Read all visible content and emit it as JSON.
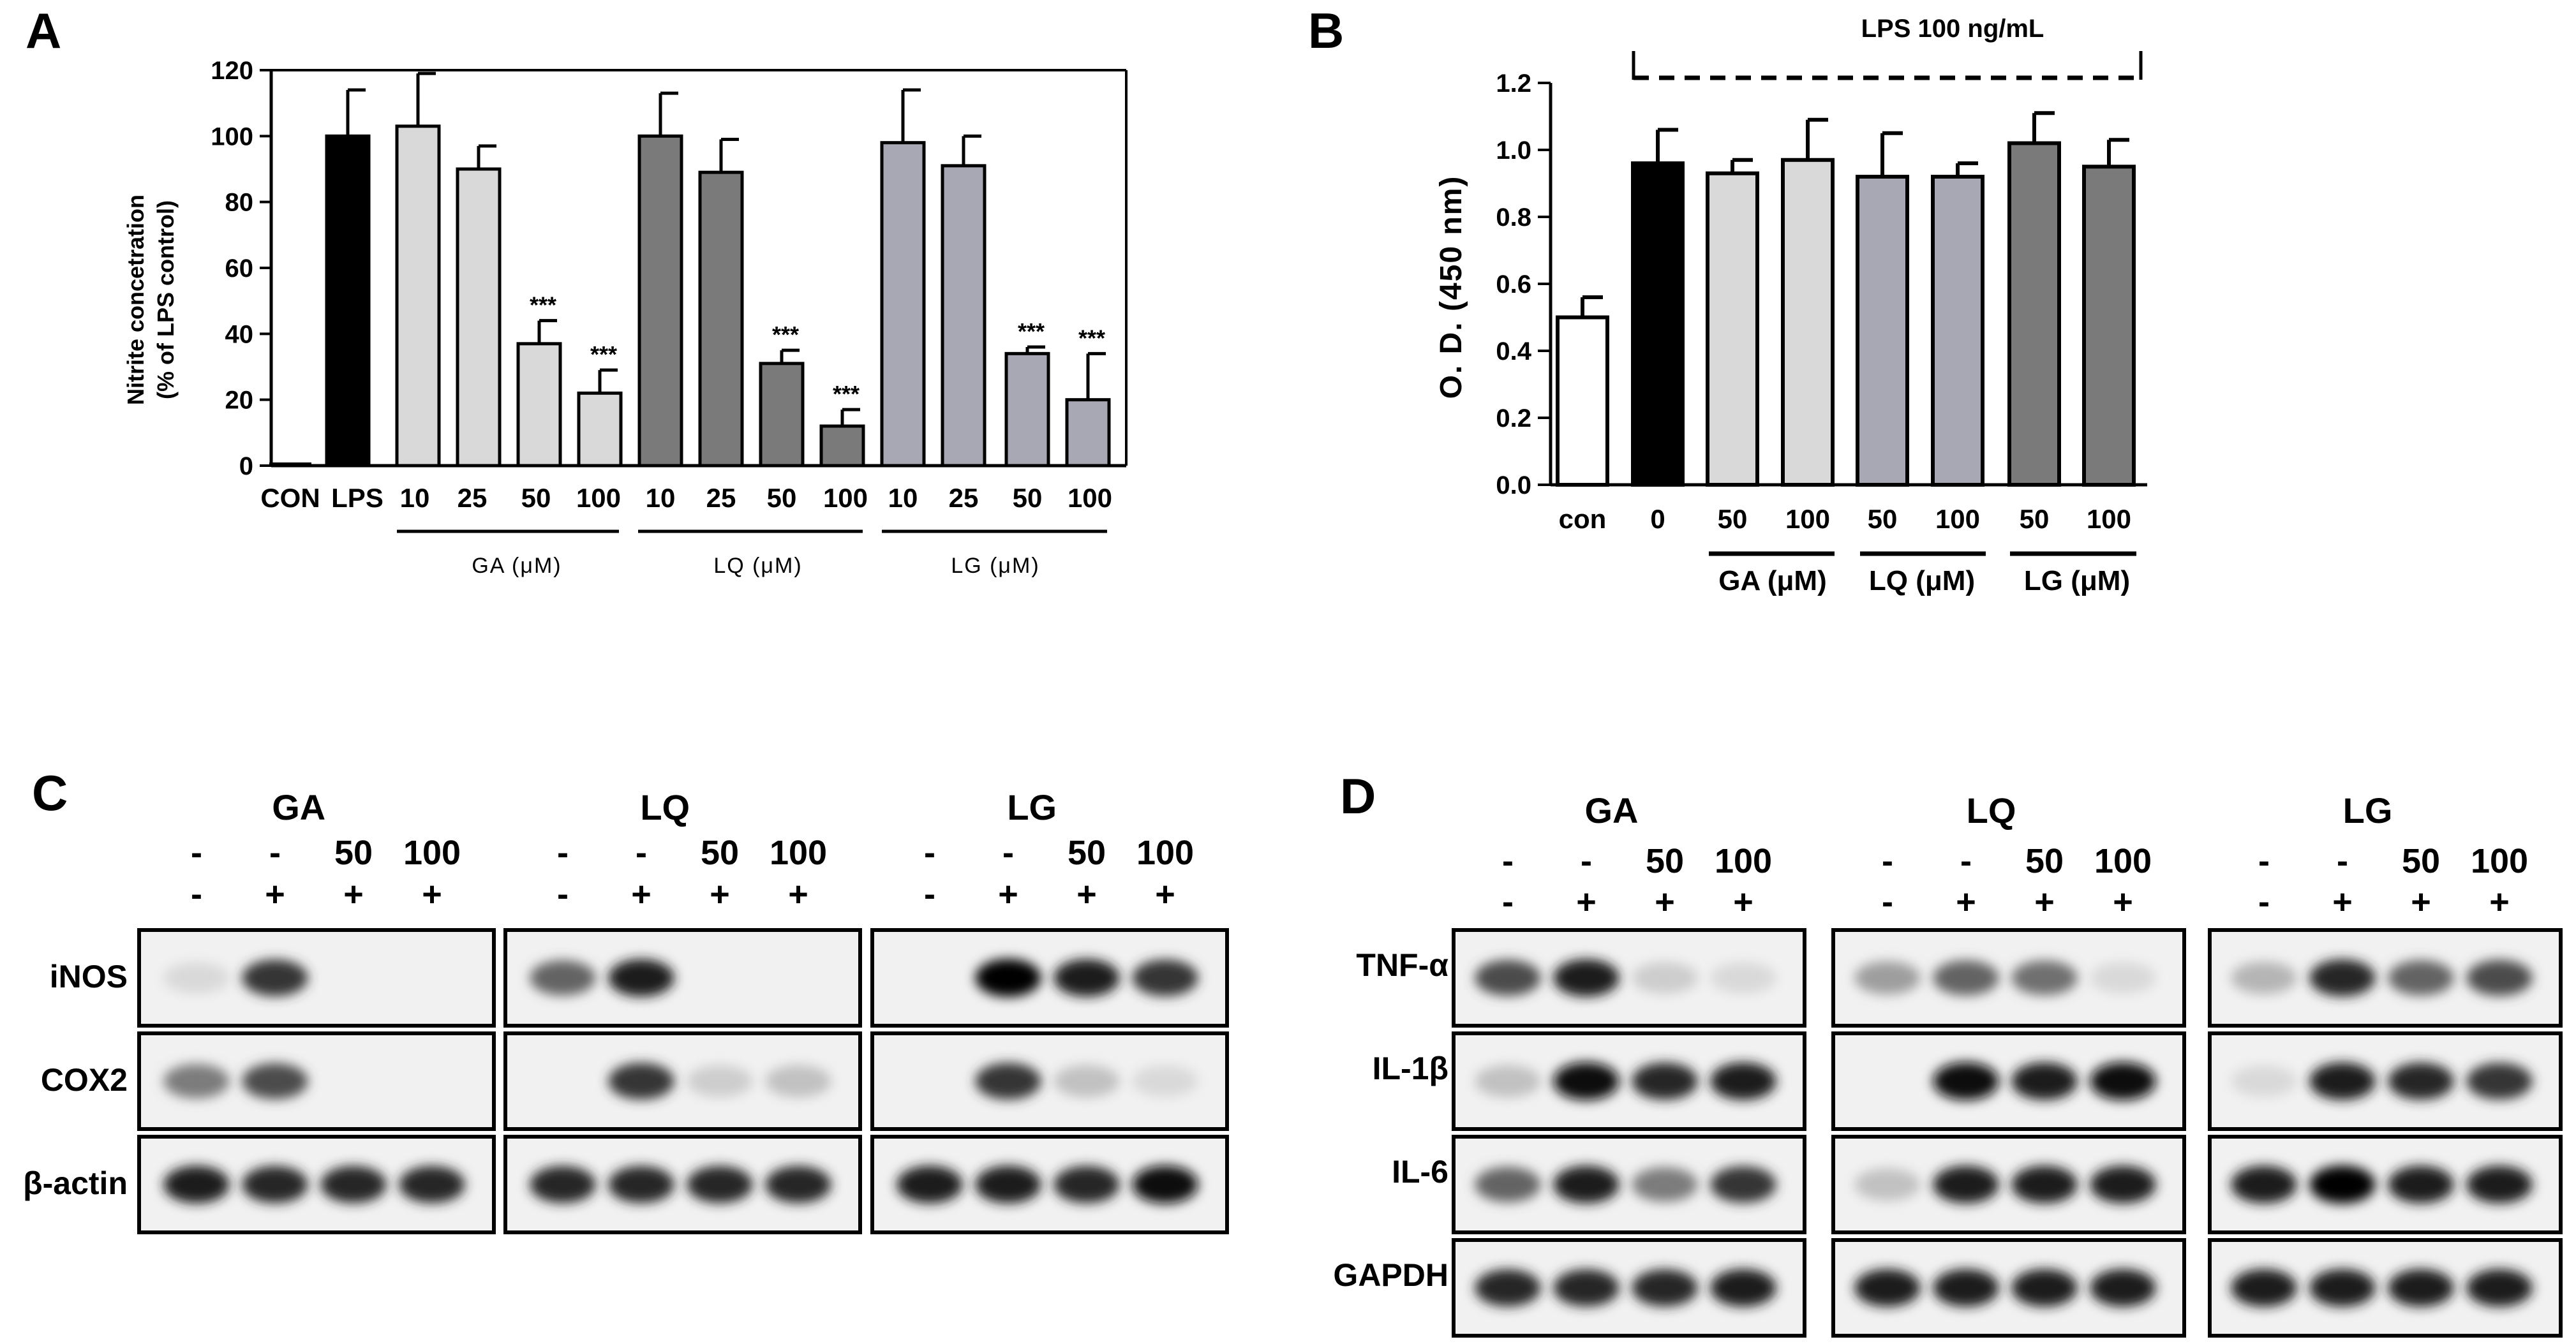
{
  "panels": {
    "A": "A",
    "B": "B",
    "C": "C",
    "D": "D"
  },
  "chart_data": [
    {
      "panel": "A",
      "type": "bar",
      "ylabel_line1": "Nitrite concetration",
      "ylabel_line2": "(% of LPS control)",
      "ylim": [
        0,
        120
      ],
      "yticks": [
        "0",
        "20",
        "40",
        "60",
        "80",
        "100",
        "120"
      ],
      "categories": [
        "CON",
        "LPS",
        "10",
        "25",
        "50",
        "100",
        "10",
        "25",
        "50",
        "100",
        "10",
        "25",
        "50",
        "100"
      ],
      "values": [
        0.5,
        100,
        103,
        90,
        37,
        22,
        100,
        89,
        31,
        12,
        98,
        91,
        34,
        20
      ],
      "errors": [
        0.3,
        14,
        16,
        7,
        7,
        7,
        13,
        10,
        4,
        5,
        16,
        9,
        2,
        14
      ],
      "significance": [
        "",
        "",
        "",
        "",
        "***",
        "***",
        "",
        "",
        "***",
        "***",
        "",
        "",
        "***",
        "***"
      ],
      "groups": [
        "GA (μM)",
        "LQ (μM)",
        "LG (μM)"
      ],
      "colors": [
        "#e8e8e8",
        "#000000",
        "#d9d9d9",
        "#d9d9d9",
        "#d9d9d9",
        "#d9d9d9",
        "#7a7a7a",
        "#7a7a7a",
        "#7a7a7a",
        "#7a7a7a",
        "#a8a8b4",
        "#a8a8b4",
        "#a8a8b4",
        "#a8a8b4"
      ]
    },
    {
      "panel": "B",
      "type": "bar",
      "ylabel": "O. D. (450 nm)",
      "ylim": [
        0,
        1.2
      ],
      "yticks": [
        "0.0",
        "0.2",
        "0.4",
        "0.6",
        "0.8",
        "1.0",
        "1.2"
      ],
      "categories": [
        "con",
        "0",
        "50",
        "100",
        "50",
        "100",
        "50",
        "100"
      ],
      "values": [
        0.5,
        0.96,
        0.93,
        0.97,
        0.92,
        0.92,
        1.02,
        0.95
      ],
      "errors": [
        0.06,
        0.1,
        0.04,
        0.12,
        0.13,
        0.04,
        0.09,
        0.08
      ],
      "groups": [
        "GA (μM)",
        "LQ (μM)",
        "LG (μM)"
      ],
      "bracket_label": "LPS 100 ng/mL",
      "colors": [
        "#ffffff",
        "#000000",
        "#d9d9d9",
        "#d9d9d9",
        "#a8a8b4",
        "#a8a8b4",
        "#7a7a7a",
        "#7a7a7a"
      ]
    }
  ],
  "blotC": {
    "groups": [
      "GA",
      "LQ",
      "LG"
    ],
    "row1": [
      "-",
      "-",
      "50",
      "100"
    ],
    "row2": [
      "-",
      "+",
      "+",
      "+"
    ],
    "rows": [
      "iNOS",
      "COX2",
      "β-actin"
    ],
    "bands": [
      [
        [
          0.1,
          0.8,
          0,
          0
        ],
        [
          0.6,
          0.9,
          0,
          0
        ],
        [
          0,
          1,
          0.9,
          0.8
        ]
      ],
      [
        [
          0.5,
          0.7,
          0,
          0
        ],
        [
          0,
          0.8,
          0.15,
          0.2
        ],
        [
          0,
          0.8,
          0.2,
          0.1
        ]
      ],
      [
        [
          0.9,
          0.85,
          0.85,
          0.85
        ],
        [
          0.85,
          0.85,
          0.85,
          0.85
        ],
        [
          0.9,
          0.9,
          0.85,
          0.95
        ]
      ]
    ]
  },
  "blotD": {
    "groups": [
      "GA",
      "LQ",
      "LG"
    ],
    "row1": [
      "-",
      "-",
      "50",
      "100"
    ],
    "row2": [
      "-",
      "+",
      "+",
      "+"
    ],
    "rows": [
      "TNF-α",
      "IL-1β",
      "IL-6",
      "GAPDH"
    ],
    "bands": [
      [
        [
          0.7,
          0.9,
          0.15,
          0.1
        ],
        [
          0.35,
          0.6,
          0.55,
          0.1
        ],
        [
          0.25,
          0.85,
          0.6,
          0.7
        ]
      ],
      [
        [
          0.2,
          0.95,
          0.85,
          0.9
        ],
        [
          0,
          0.95,
          0.9,
          0.95
        ],
        [
          0.1,
          0.9,
          0.85,
          0.8
        ]
      ],
      [
        [
          0.6,
          0.9,
          0.5,
          0.8
        ],
        [
          0.2,
          0.9,
          0.9,
          0.9
        ],
        [
          0.9,
          1,
          0.9,
          0.9
        ]
      ],
      [
        [
          0.85,
          0.85,
          0.85,
          0.9
        ],
        [
          0.9,
          0.9,
          0.9,
          0.9
        ],
        [
          0.9,
          0.9,
          0.9,
          0.9
        ]
      ]
    ]
  }
}
